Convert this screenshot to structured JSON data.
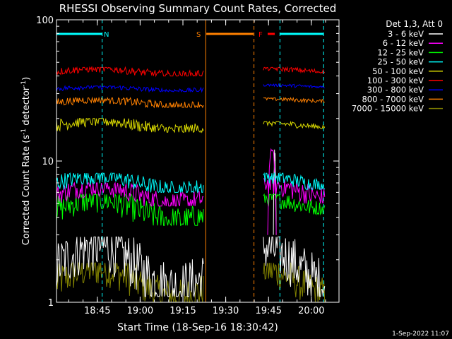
{
  "chart_data": {
    "type": "line",
    "title": "RHESSI Observing Summary Count Rates, Corrected",
    "xlabel": "Start Time (18-Sep-16 18:30:42)",
    "ylabel_main": "Corrected Count Rate (s",
    "ylabel_sup1": "-1",
    "ylabel_mid": " detector",
    "ylabel_sup2": "-1",
    "ylabel_end": ")",
    "yscale": "log",
    "ylim": [
      1,
      100
    ],
    "xlim_minutes": [
      0,
      99
    ],
    "x_ticks": [
      "18:45",
      "19:00",
      "19:15",
      "19:30",
      "19:45",
      "20:00"
    ],
    "x_tick_minutes": [
      14.3,
      29.3,
      44.3,
      59.3,
      74.3,
      89.3
    ],
    "y_ticks": [
      "1",
      "10",
      "100"
    ],
    "y_tick_values": [
      1,
      10,
      100
    ],
    "grid": false,
    "legend_title": "Det 1,3, Att 0",
    "legend_position": "top-right",
    "timestamp": "1-Sep-2022 11:07",
    "gaps_minutes": [
      [
        51.5,
        72.5
      ]
    ],
    "flags": [
      {
        "label": "N",
        "color": "#00ffff",
        "bar": [
          0,
          16
        ],
        "vline": 16,
        "text_at": 17.5
      },
      {
        "label": "S",
        "color": "#ff8000",
        "bar": [
          52.5,
          69
        ],
        "vline": 52.3,
        "text_at": 49.8
      },
      {
        "label": "F",
        "color": "#ff0000",
        "bar": [
          74,
          76.5
        ],
        "vline": null,
        "text_at": 71.5
      },
      {
        "label": "",
        "color": "#00ffff",
        "bar": [
          78.3,
          93.5
        ],
        "vline": 78.3,
        "text_at": null
      }
    ],
    "extra_vlines": [
      {
        "x": 69.2,
        "color": "#ff8000"
      },
      {
        "x": 93.6,
        "color": "#00ffff"
      }
    ],
    "series": [
      {
        "name": "3 - 6 keV",
        "color": "#ffffff",
        "segments": [
          [
            0,
            51.5,
            1.1,
            2.9
          ],
          [
            72.5,
            94,
            1.1,
            2.9
          ]
        ],
        "bump": [
          76,
          77,
          13
        ]
      },
      {
        "name": "6 - 12 keV",
        "color": "#ff00ff",
        "segments": [
          [
            0,
            51.5,
            4.8,
            7.0
          ],
          [
            72.5,
            94,
            5.0,
            7.5
          ]
        ],
        "bump": [
          74,
          77,
          14
        ]
      },
      {
        "name": "12 - 25 keV",
        "color": "#00ff00",
        "segments": [
          [
            0,
            51.5,
            3.5,
            5.8
          ],
          [
            72.5,
            94,
            4.2,
            5.8
          ]
        ],
        "bump": null
      },
      {
        "name": "25 - 50 keV",
        "color": "#00ffff",
        "segments": [
          [
            0,
            51.5,
            6.0,
            8.2
          ],
          [
            72.5,
            94,
            6.3,
            8.2
          ]
        ],
        "bump": null
      },
      {
        "name": "50 - 100 keV",
        "color": "#d8d800",
        "segments": [
          [
            0,
            51.5,
            16.0,
            20.0
          ],
          [
            72.5,
            94,
            17.0,
            19.0
          ]
        ],
        "bump": null
      },
      {
        "name": "100 - 300 keV",
        "color": "#ff0000",
        "segments": [
          [
            0,
            51.5,
            40.0,
            46.0
          ],
          [
            72.5,
            94,
            42.0,
            46.0
          ]
        ],
        "bump": null
      },
      {
        "name": "300 - 800 keV",
        "color": "#0000ff",
        "segments": [
          [
            0,
            51.5,
            31.0,
            34.0
          ],
          [
            72.5,
            94,
            33.0,
            35.0
          ]
        ],
        "bump": null
      },
      {
        "name": "800 - 7000 keV",
        "color": "#ff8000",
        "segments": [
          [
            0,
            51.5,
            24.0,
            28.0
          ],
          [
            72.5,
            94,
            26.0,
            28.0
          ]
        ],
        "bump": null
      },
      {
        "name": "7000 - 15000 keV",
        "color": "#808000",
        "segments": [
          [
            0,
            51.5,
            1.0,
            1.9
          ],
          [
            72.5,
            94,
            1.0,
            1.9
          ]
        ],
        "bump": null
      }
    ]
  }
}
